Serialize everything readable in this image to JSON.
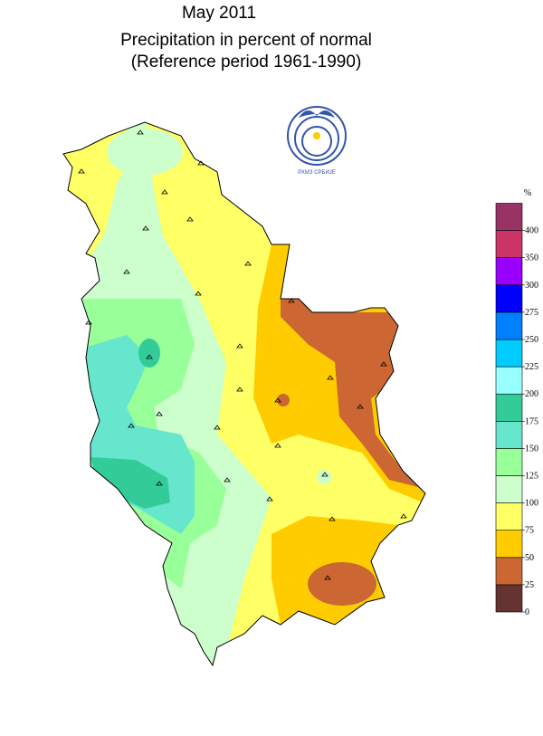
{
  "header": {
    "title": "May  2011",
    "subtitle": "Precipitation in percent of normal",
    "reference": "(Reference period 1961-1990)"
  },
  "logo_text": "РХМЗ СРБИЈЕ",
  "legend": {
    "unit": "%",
    "ticks": [
      0,
      25,
      50,
      75,
      100,
      125,
      150,
      175,
      200,
      225,
      250,
      275,
      300,
      350,
      400
    ],
    "colors": [
      "#663333",
      "#cc6633",
      "#ffcc00",
      "#ffff66",
      "#ccffcc",
      "#99ff99",
      "#66e6cc",
      "#33cc99",
      "#99ffff",
      "#00ccff",
      "#0080ff",
      "#0000ff",
      "#9900ff",
      "#cc3366",
      "#993366"
    ]
  }
}
